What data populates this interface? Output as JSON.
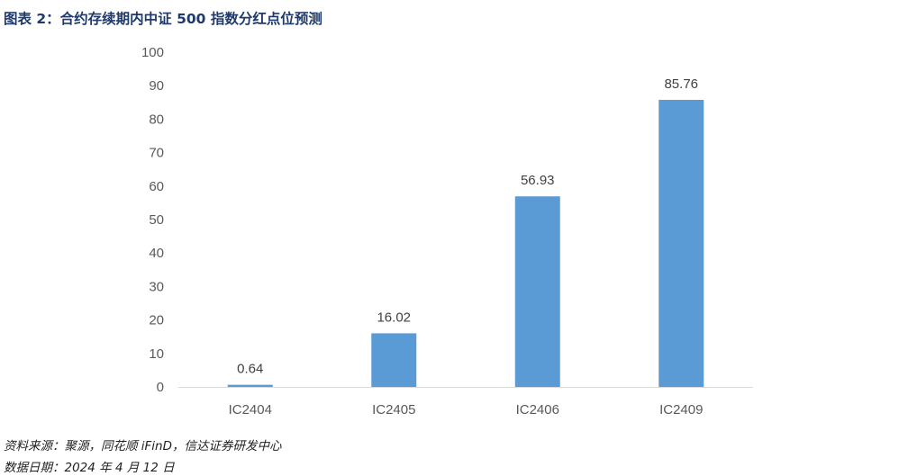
{
  "header": {
    "title": "图表 2：合约存续期内中证 500 指数分红点位预测"
  },
  "colors": {
    "bar": "#5b9bd5",
    "axis": "#d9d9d9",
    "title": "#1f3a6b"
  },
  "chart_data": {
    "type": "bar",
    "title": "",
    "xlabel": "",
    "ylabel": "",
    "categories": [
      "IC2404",
      "IC2405",
      "IC2406",
      "IC2409"
    ],
    "values": [
      0.64,
      16.02,
      56.93,
      85.76
    ],
    "data_labels": [
      "0.64",
      "16.02",
      "56.93",
      "85.76"
    ],
    "ylim": [
      0,
      100
    ],
    "yticks": [
      "0",
      "10",
      "20",
      "30",
      "40",
      "50",
      "60",
      "70",
      "80",
      "90",
      "100"
    ],
    "grid": false,
    "legend": "none"
  },
  "footer": {
    "source": "资料来源：聚源，同花顺 iFinD，信达证券研发中心",
    "date": "数据日期：2024 年 4 月 12 日"
  }
}
